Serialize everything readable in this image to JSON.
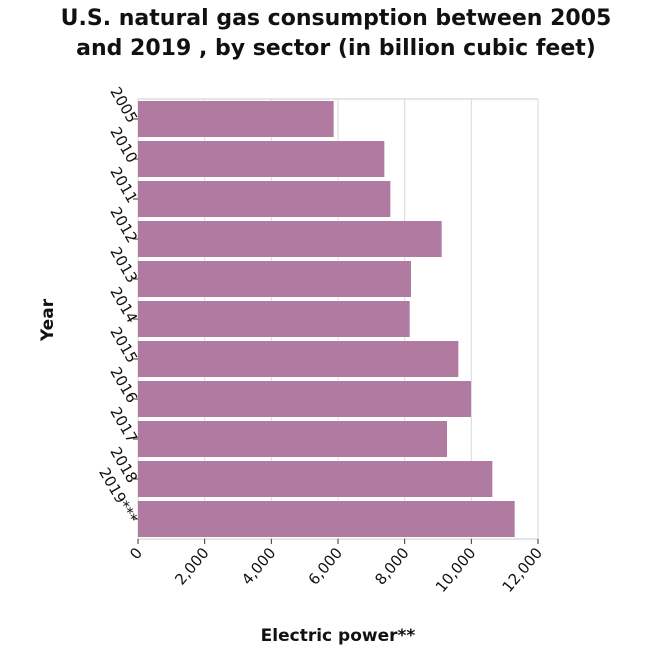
{
  "chart_data": {
    "type": "bar",
    "orientation": "horizontal",
    "title_lines": [
      "U.S. natural gas consumption between 2005",
      "and 2019 , by sector (in billion cubic feet)"
    ],
    "xlabel": "Electric power**",
    "ylabel": "Year",
    "categories": [
      "2005",
      "2010",
      "2011",
      "2012",
      "2013",
      "2014",
      "2015",
      "2016",
      "2017",
      "2018",
      "2019***"
    ],
    "values": [
      5870,
      7390,
      7570,
      9110,
      8190,
      8150,
      9610,
      9990,
      9270,
      10630,
      11300
    ],
    "xlim": [
      0,
      12000
    ],
    "xticks": [
      0,
      2000,
      4000,
      6000,
      8000,
      10000,
      12000
    ],
    "xtick_labels": [
      "0",
      "2,000",
      "4,000",
      "6,000",
      "8,000",
      "10,000",
      "12,000"
    ],
    "grid": true,
    "bar_color": "#b07aa1"
  }
}
